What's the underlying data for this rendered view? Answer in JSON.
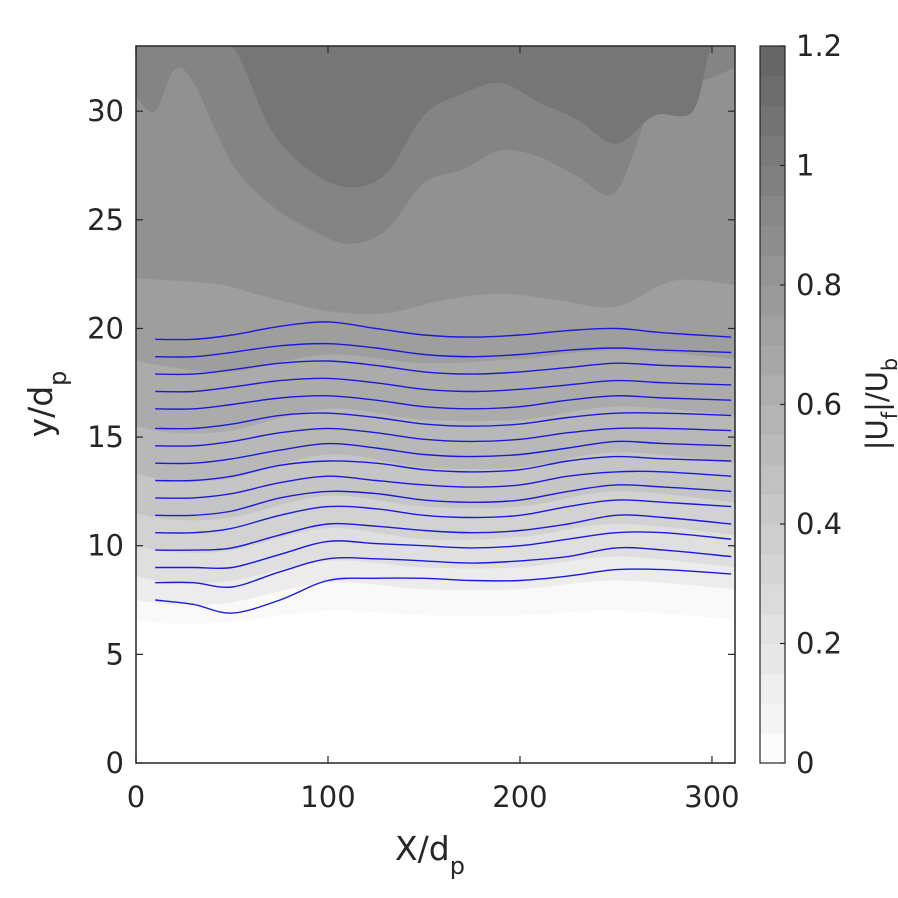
{
  "chart_data": {
    "type": "contour",
    "xlabel": "X/d",
    "xlabel_sub": "p",
    "ylabel": "y/d",
    "ylabel_sub": "p",
    "xlim": [
      0,
      312
    ],
    "ylim": [
      0,
      33
    ],
    "xticks": [
      0,
      100,
      200,
      300
    ],
    "yticks": [
      0,
      5,
      10,
      15,
      20,
      25,
      30
    ],
    "colorbar": {
      "label_parts": [
        "|U",
        "f",
        "|/U",
        "b"
      ],
      "range": [
        0,
        1.2
      ],
      "ticks": [
        "0",
        "0.2",
        "0.4",
        "0.6",
        "0.8",
        "1",
        "1.2"
      ],
      "tick_values": [
        0,
        0.2,
        0.4,
        0.6,
        0.8,
        1.0,
        1.2
      ],
      "levels": 24,
      "color_low": "#ffffff",
      "color_high": "#636363"
    },
    "field_bands": [
      {
        "level": 0.05,
        "x": [
          0,
          20,
          50,
          100,
          150,
          200,
          250,
          312
        ],
        "y": [
          6.6,
          6.4,
          6.5,
          7.0,
          6.8,
          6.8,
          7.0,
          6.6
        ]
      },
      {
        "level": 0.15,
        "x": [
          0,
          20,
          50,
          100,
          150,
          200,
          250,
          312
        ],
        "y": [
          7.5,
          7.3,
          7.4,
          8.3,
          8.0,
          8.0,
          8.4,
          8.0
        ]
      },
      {
        "level": 0.25,
        "x": [
          0,
          20,
          50,
          100,
          150,
          200,
          250,
          312
        ],
        "y": [
          8.6,
          8.3,
          8.4,
          9.3,
          9.0,
          9.0,
          9.5,
          9.0
        ]
      },
      {
        "level": 0.35,
        "x": [
          0,
          20,
          50,
          100,
          150,
          200,
          250,
          312
        ],
        "y": [
          10.0,
          9.7,
          9.8,
          10.8,
          10.3,
          10.4,
          11.0,
          10.5
        ]
      },
      {
        "level": 0.45,
        "x": [
          0,
          20,
          50,
          100,
          150,
          200,
          250,
          312
        ],
        "y": [
          11.5,
          11.2,
          11.3,
          12.3,
          11.8,
          11.8,
          12.5,
          12.0
        ]
      },
      {
        "level": 0.55,
        "x": [
          0,
          20,
          50,
          100,
          150,
          200,
          250,
          312
        ],
        "y": [
          13.3,
          13.0,
          13.1,
          14.2,
          13.6,
          13.6,
          14.3,
          13.8
        ]
      },
      {
        "level": 0.65,
        "x": [
          0,
          20,
          50,
          100,
          150,
          200,
          250,
          312
        ],
        "y": [
          15.5,
          15.2,
          15.3,
          16.3,
          15.8,
          15.8,
          16.4,
          16.0
        ]
      },
      {
        "level": 0.75,
        "x": [
          0,
          20,
          50,
          100,
          150,
          200,
          250,
          312
        ],
        "y": [
          18.5,
          18.2,
          18.0,
          18.8,
          18.4,
          18.6,
          19.0,
          18.6
        ]
      },
      {
        "level": 0.85,
        "x": [
          0,
          20,
          45,
          70,
          100,
          130,
          160,
          190,
          220,
          250,
          280,
          312
        ],
        "y": [
          22.3,
          22.2,
          22.0,
          21.4,
          20.8,
          20.7,
          21.3,
          21.6,
          21.3,
          21.0,
          22.2,
          22.0
        ]
      },
      {
        "level": 0.95,
        "x": [
          0,
          10,
          20,
          30,
          50,
          70,
          90,
          110,
          130,
          150,
          170,
          190,
          210,
          230,
          250,
          270,
          290,
          312
        ],
        "y": [
          30.6,
          30.0,
          31.9,
          31.3,
          27.6,
          25.7,
          24.6,
          23.9,
          24.5,
          26.7,
          27.3,
          28.2,
          27.9,
          27.0,
          26.3,
          30.5,
          31.2,
          32.0
        ]
      },
      {
        "level": 1.05,
        "x": [
          0,
          10,
          20,
          30,
          50,
          70,
          90,
          110,
          130,
          150,
          170,
          190,
          210,
          230,
          250,
          270,
          290,
          300,
          312
        ],
        "y": [
          33,
          33,
          33,
          33,
          33,
          29.2,
          27.3,
          26.5,
          27.1,
          29.8,
          30.8,
          31.3,
          30.4,
          29.6,
          28.5,
          29.8,
          30.0,
          33,
          33
        ]
      }
    ],
    "streamlines": {
      "color": "#1a1adc",
      "x_start": 10,
      "x_end": 310,
      "x_nodes": [
        10,
        30,
        50,
        75,
        100,
        125,
        150,
        175,
        200,
        225,
        250,
        275,
        310
      ],
      "lines": [
        [
          7.5,
          7.3,
          6.9,
          7.5,
          8.4,
          8.5,
          8.5,
          8.4,
          8.4,
          8.6,
          8.9,
          8.9,
          8.7
        ],
        [
          8.3,
          8.3,
          8.1,
          8.8,
          9.4,
          9.4,
          9.3,
          9.2,
          9.3,
          9.5,
          9.9,
          9.8,
          9.5
        ],
        [
          9.0,
          9.0,
          9.0,
          9.6,
          10.2,
          10.1,
          10.0,
          9.9,
          10.0,
          10.3,
          10.6,
          10.6,
          10.3
        ],
        [
          9.8,
          9.8,
          9.9,
          10.5,
          11.0,
          10.9,
          10.7,
          10.6,
          10.7,
          11.0,
          11.4,
          11.3,
          11.0
        ],
        [
          10.6,
          10.6,
          10.8,
          11.4,
          11.8,
          11.7,
          11.4,
          11.3,
          11.4,
          11.8,
          12.1,
          12.0,
          11.8
        ],
        [
          11.4,
          11.4,
          11.6,
          12.2,
          12.5,
          12.4,
          12.1,
          12.0,
          12.1,
          12.5,
          12.8,
          12.7,
          12.5
        ],
        [
          12.2,
          12.2,
          12.4,
          12.9,
          13.2,
          13.0,
          12.8,
          12.7,
          12.8,
          13.2,
          13.4,
          13.4,
          13.2
        ],
        [
          13.0,
          13.0,
          13.2,
          13.7,
          13.9,
          13.8,
          13.5,
          13.4,
          13.5,
          13.9,
          14.1,
          14.0,
          13.9
        ],
        [
          13.8,
          13.8,
          14.0,
          14.4,
          14.7,
          14.5,
          14.2,
          14.1,
          14.2,
          14.5,
          14.8,
          14.7,
          14.6
        ],
        [
          14.6,
          14.6,
          14.8,
          15.2,
          15.4,
          15.2,
          14.9,
          14.8,
          14.9,
          15.2,
          15.4,
          15.4,
          15.3
        ],
        [
          15.4,
          15.4,
          15.6,
          16.0,
          16.1,
          15.9,
          15.6,
          15.5,
          15.6,
          15.9,
          16.1,
          16.1,
          16.0
        ],
        [
          16.3,
          16.3,
          16.5,
          16.8,
          16.9,
          16.7,
          16.4,
          16.3,
          16.4,
          16.7,
          16.9,
          16.8,
          16.7
        ],
        [
          17.1,
          17.1,
          17.3,
          17.6,
          17.7,
          17.5,
          17.2,
          17.1,
          17.2,
          17.4,
          17.6,
          17.5,
          17.4
        ],
        [
          17.9,
          17.9,
          18.1,
          18.4,
          18.5,
          18.3,
          18.0,
          17.9,
          18.0,
          18.2,
          18.4,
          18.3,
          18.2
        ],
        [
          18.7,
          18.7,
          18.9,
          19.2,
          19.3,
          19.1,
          18.8,
          18.7,
          18.8,
          19.0,
          19.1,
          19.0,
          18.9
        ],
        [
          19.5,
          19.5,
          19.7,
          20.1,
          20.3,
          20.0,
          19.7,
          19.6,
          19.7,
          19.9,
          20.0,
          19.8,
          19.6
        ]
      ]
    }
  }
}
